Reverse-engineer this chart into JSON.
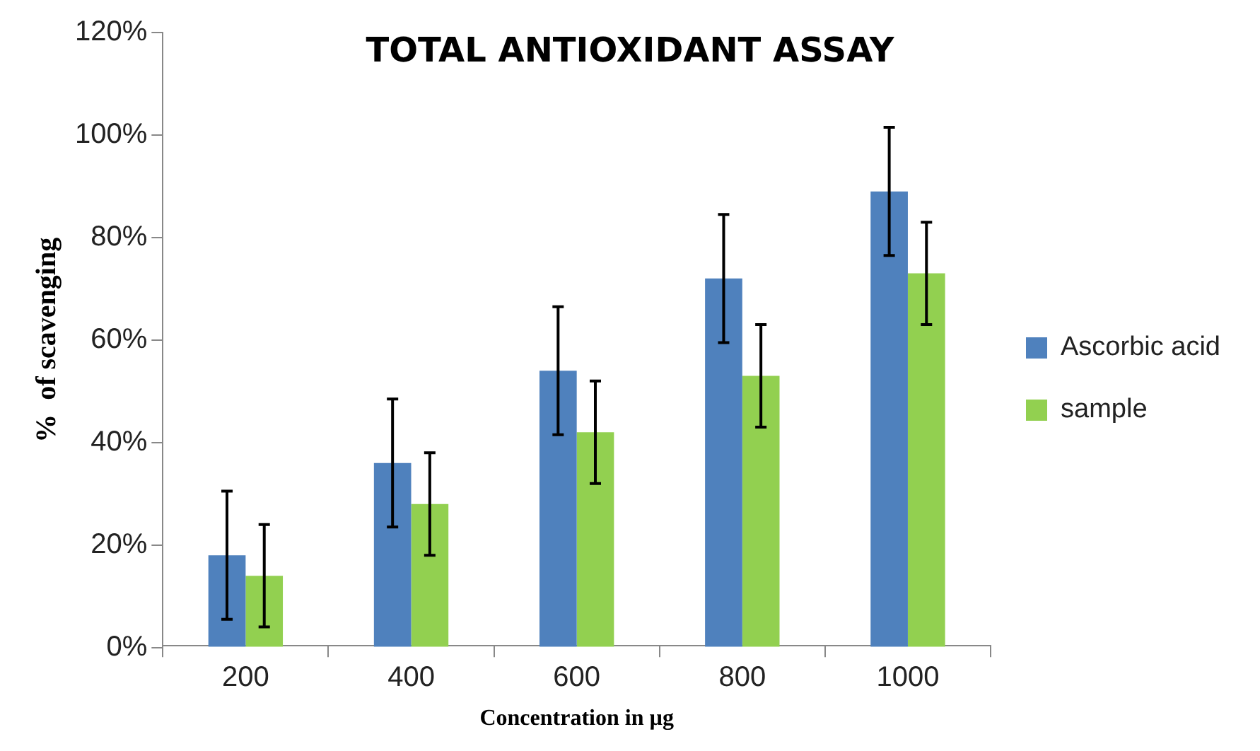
{
  "chart_data": {
    "type": "bar",
    "title": "TOTAL ANTIOXIDANT ASSAY",
    "xlabel": "Concentration in µg",
    "ylabel": "%  of scavenging",
    "categories": [
      "200",
      "400",
      "600",
      "800",
      "1000"
    ],
    "series": [
      {
        "name": "Ascorbic acid",
        "color": "#4f81bd",
        "values": [
          18,
          36,
          54,
          72,
          89
        ],
        "errors": [
          12.5,
          12.5,
          12.5,
          12.5,
          12.5
        ]
      },
      {
        "name": "sample",
        "color": "#92d050",
        "values": [
          14,
          28,
          42,
          53,
          73
        ],
        "errors": [
          10,
          10,
          10,
          10,
          10
        ]
      }
    ],
    "ylim": [
      0,
      120
    ],
    "yticks": [
      {
        "value": 0,
        "label": "0%"
      },
      {
        "value": 20,
        "label": "20%"
      },
      {
        "value": 40,
        "label": "40%"
      },
      {
        "value": 60,
        "label": "60%"
      },
      {
        "value": 80,
        "label": "80%"
      },
      {
        "value": 100,
        "label": "100%"
      },
      {
        "value": 120,
        "label": "120%"
      }
    ],
    "grid": false,
    "legend": "right"
  }
}
